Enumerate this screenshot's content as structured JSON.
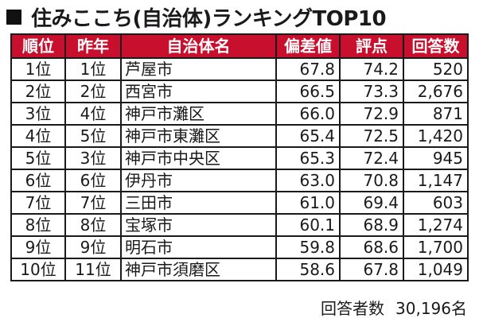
{
  "title": "住みここち(自治体)ランキングTOP10",
  "headers": [
    "順位",
    "昨年",
    "自治体名",
    "偏差値",
    "評点",
    "回答数"
  ],
  "rows": [
    {
      "rank": "1位",
      "prev": "1位",
      "name": "芦屋市",
      "dev": "67.8",
      "score": "74.2",
      "resp": "520"
    },
    {
      "rank": "2位",
      "prev": "2位",
      "name": "西宮市",
      "dev": "66.5",
      "score": "73.3",
      "resp": "2,676"
    },
    {
      "rank": "3位",
      "prev": "4位",
      "name": "神戸市灘区",
      "dev": "66.0",
      "score": "72.9",
      "resp": "871"
    },
    {
      "rank": "4位",
      "prev": "5位",
      "name": "神戸市東灘区",
      "dev": "65.4",
      "score": "72.5",
      "resp": "1,420"
    },
    {
      "rank": "5位",
      "prev": "3位",
      "name": "神戸市中央区",
      "dev": "65.3",
      "score": "72.4",
      "resp": "945"
    },
    {
      "rank": "6位",
      "prev": "6位",
      "name": "伊丹市",
      "dev": "63.0",
      "score": "70.8",
      "resp": "1,147"
    },
    {
      "rank": "7位",
      "prev": "7位",
      "name": "三田市",
      "dev": "61.0",
      "score": "69.4",
      "resp": "603"
    },
    {
      "rank": "8位",
      "prev": "8位",
      "name": "宝塚市",
      "dev": "60.1",
      "score": "68.9",
      "resp": "1,274"
    },
    {
      "rank": "9位",
      "prev": "9位",
      "name": "明石市",
      "dev": "59.8",
      "score": "68.6",
      "resp": "1,700"
    },
    {
      "rank": "10位",
      "prev": "11位",
      "name": "神戸市須磨区",
      "dev": "58.6",
      "score": "67.8",
      "resp": "1,049"
    }
  ],
  "footer": {
    "label": "回答者数",
    "value": "30,196名"
  },
  "colors": {
    "header_bg": "#c8102e",
    "header_text": "#ffffff"
  }
}
